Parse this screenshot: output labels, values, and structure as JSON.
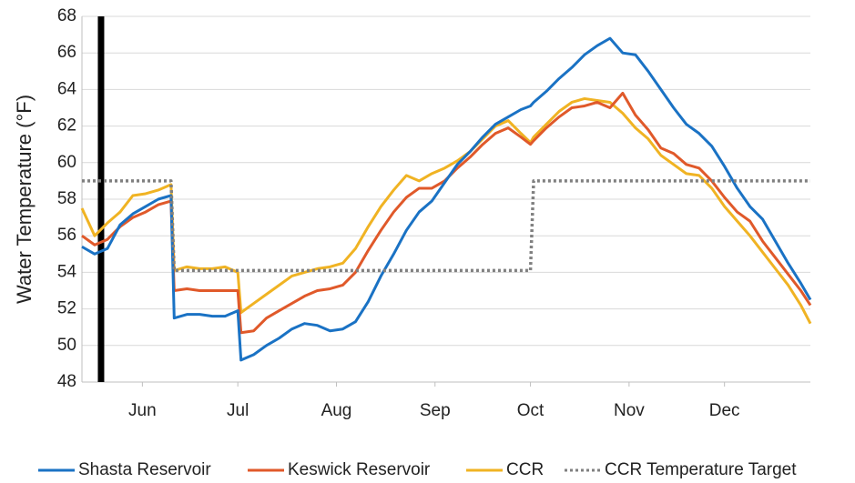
{
  "chart_data": {
    "type": "line",
    "ylabel": "Water Temperature (°F)",
    "x": [
      133,
      137,
      141,
      145,
      149,
      153,
      157,
      161,
      162,
      166,
      170,
      174,
      178,
      182,
      183,
      187,
      191,
      195,
      199,
      203,
      207,
      211,
      215,
      219,
      223,
      227,
      231,
      235,
      239,
      243,
      247,
      251,
      255,
      259,
      263,
      267,
      271,
      274,
      275,
      279,
      283,
      287,
      291,
      295,
      299,
      303,
      307,
      311,
      315,
      319,
      323,
      327,
      331,
      335,
      339,
      343,
      347,
      351,
      355,
      359,
      362
    ],
    "xlim": [
      133,
      362
    ],
    "xticks": [
      {
        "value": 152,
        "label": "Jun"
      },
      {
        "value": 182,
        "label": "Jul"
      },
      {
        "value": 213,
        "label": "Aug"
      },
      {
        "value": 244,
        "label": "Sep"
      },
      {
        "value": 274,
        "label": "Oct"
      },
      {
        "value": 305,
        "label": "Nov"
      },
      {
        "value": 335,
        "label": "Dec"
      }
    ],
    "ylim": [
      48,
      68
    ],
    "yticks": [
      48,
      50,
      52,
      54,
      56,
      58,
      60,
      62,
      64,
      66,
      68
    ],
    "grid": true,
    "marker_x": 139,
    "marker_color": "#000000",
    "legend": "bottom",
    "series": [
      {
        "name": "Shasta Reservoir",
        "color": "#1a72c4",
        "values": [
          55.4,
          55.0,
          55.3,
          56.6,
          57.2,
          57.6,
          58.0,
          58.2,
          51.5,
          51.7,
          51.7,
          51.6,
          51.6,
          51.9,
          49.2,
          49.5,
          50.0,
          50.4,
          50.9,
          51.2,
          51.1,
          50.8,
          50.9,
          51.3,
          52.4,
          53.8,
          55.0,
          56.3,
          57.3,
          57.9,
          58.9,
          59.9,
          60.6,
          61.4,
          62.1,
          62.5,
          62.9,
          63.1,
          63.3,
          63.9,
          64.6,
          65.2,
          65.9,
          66.4,
          66.8,
          66.0,
          65.9,
          65.0,
          64.0,
          63.0,
          62.1,
          61.6,
          60.9,
          59.8,
          58.6,
          57.6,
          56.9,
          55.7,
          54.5,
          53.4,
          52.5
        ]
      },
      {
        "name": "Keswick Reservoir",
        "color": "#e0592a",
        "values": [
          56.0,
          55.5,
          55.8,
          56.5,
          57.0,
          57.3,
          57.7,
          57.9,
          53.0,
          53.1,
          53.0,
          53.0,
          53.0,
          53.0,
          50.7,
          50.8,
          51.5,
          51.9,
          52.3,
          52.7,
          53.0,
          53.1,
          53.3,
          54.0,
          55.2,
          56.3,
          57.3,
          58.1,
          58.6,
          58.6,
          59.0,
          59.7,
          60.3,
          61.0,
          61.6,
          61.9,
          61.4,
          61.0,
          61.2,
          61.9,
          62.5,
          63.0,
          63.1,
          63.3,
          63.0,
          63.8,
          62.6,
          61.8,
          60.8,
          60.5,
          59.9,
          59.7,
          59.0,
          58.1,
          57.3,
          56.8,
          55.7,
          54.8,
          53.9,
          53.0,
          52.2
        ]
      },
      {
        "name": "CCR",
        "color": "#f0b323",
        "values": [
          57.5,
          56.0,
          56.7,
          57.3,
          58.2,
          58.3,
          58.5,
          58.8,
          54.1,
          54.3,
          54.2,
          54.2,
          54.3,
          54.0,
          51.8,
          52.3,
          52.8,
          53.3,
          53.8,
          54.0,
          54.2,
          54.3,
          54.5,
          55.3,
          56.5,
          57.6,
          58.5,
          59.3,
          59.0,
          59.4,
          59.7,
          60.1,
          60.6,
          61.3,
          62.0,
          62.3,
          61.6,
          61.1,
          61.4,
          62.1,
          62.8,
          63.3,
          63.5,
          63.4,
          63.3,
          62.7,
          61.9,
          61.3,
          60.4,
          59.9,
          59.4,
          59.3,
          58.6,
          57.6,
          56.8,
          56.0,
          55.1,
          54.2,
          53.3,
          52.2,
          51.2
        ]
      },
      {
        "name": "CCR Temperature Target",
        "color": "#808080",
        "dash": true,
        "values": [
          59,
          59,
          59,
          59,
          59,
          59,
          59,
          59,
          54.1,
          54.1,
          54.1,
          54.1,
          54.1,
          54.1,
          54.1,
          54.1,
          54.1,
          54.1,
          54.1,
          54.1,
          54.1,
          54.1,
          54.1,
          54.1,
          54.1,
          54.1,
          54.1,
          54.1,
          54.1,
          54.1,
          54.1,
          54.1,
          54.1,
          54.1,
          54.1,
          54.1,
          54.1,
          54.1,
          59,
          59,
          59,
          59,
          59,
          59,
          59,
          59,
          59,
          59,
          59,
          59,
          59,
          59,
          59,
          59,
          59,
          59,
          59,
          59,
          59,
          59,
          59
        ]
      }
    ]
  }
}
